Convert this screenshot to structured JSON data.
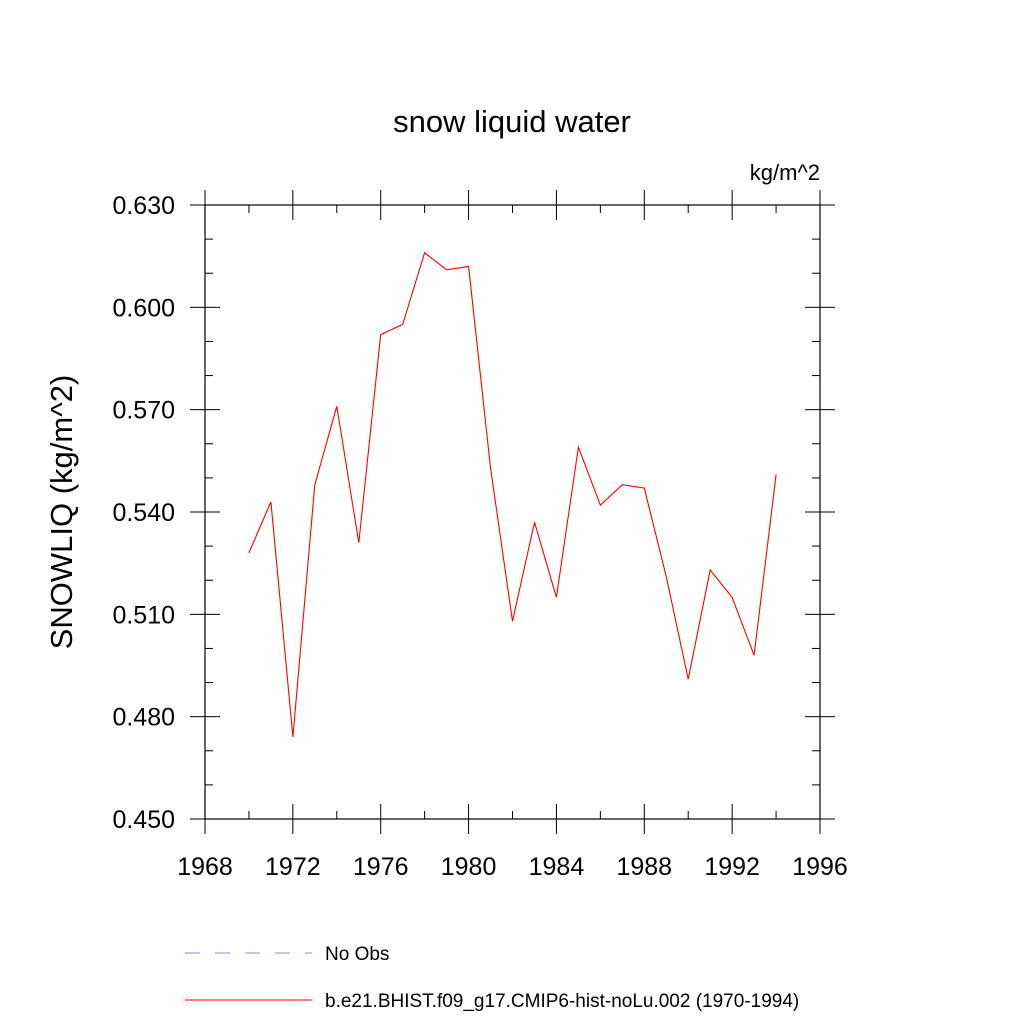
{
  "chart_data": {
    "type": "line",
    "title": "snow liquid water",
    "units_label": "kg/m^2",
    "ylabel": "SNOWLIQ  (kg/m^2)",
    "xlabel": "",
    "xlim": [
      1968,
      1996
    ],
    "ylim": [
      0.45,
      0.63
    ],
    "xticks": [
      1968,
      1972,
      1976,
      1980,
      1984,
      1988,
      1992,
      1996
    ],
    "xtick_labels": [
      "1968",
      "1972",
      "1976",
      "1980",
      "1984",
      "1988",
      "1992",
      "1996"
    ],
    "yticks": [
      0.45,
      0.48,
      0.51,
      0.54,
      0.57,
      0.6,
      0.63
    ],
    "ytick_labels": [
      "0.450",
      "0.480",
      "0.510",
      "0.540",
      "0.570",
      "0.600",
      "0.630"
    ],
    "x_minor_step": 2,
    "y_minor_step": 0.01,
    "grid": false,
    "legend_position": "bottom",
    "series": [
      {
        "name": "b.e21.BHIST.f09_g17.CMIP6-hist-noLu.002 (1970-1994)",
        "color": "#ff0000",
        "x": [
          1970,
          1971,
          1972,
          1973,
          1974,
          1975,
          1976,
          1977,
          1978,
          1979,
          1980,
          1981,
          1982,
          1983,
          1984,
          1985,
          1986,
          1987,
          1988,
          1989,
          1990,
          1991,
          1992,
          1993,
          1994
        ],
        "values": [
          0.528,
          0.543,
          0.474,
          0.548,
          0.571,
          0.531,
          0.592,
          0.595,
          0.616,
          0.611,
          0.612,
          0.553,
          0.508,
          0.537,
          0.515,
          0.559,
          0.542,
          0.548,
          0.547,
          0.521,
          0.491,
          0.523,
          0.515,
          0.498,
          0.551
        ]
      }
    ],
    "legend": [
      {
        "label": "No Obs",
        "style": "dashed",
        "color": "#8c8cdc"
      },
      {
        "label": "b.e21.BHIST.f09_g17.CMIP6-hist-noLu.002 (1970-1994)",
        "style": "solid",
        "color": "#ff0000"
      }
    ]
  }
}
